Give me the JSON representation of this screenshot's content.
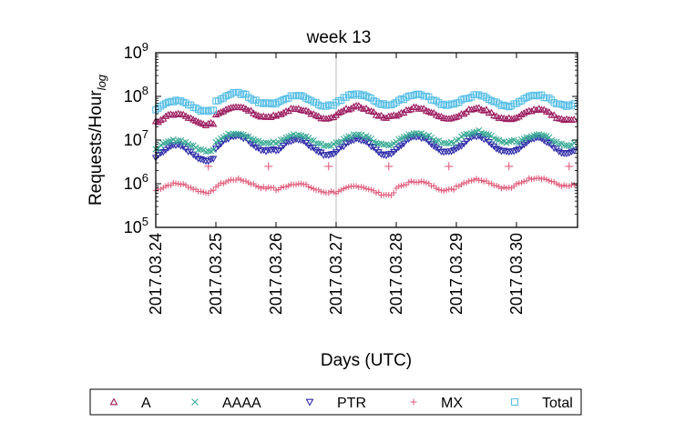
{
  "chart_data": {
    "type": "scatter",
    "title": "week 13",
    "xlabel": "Days (UTC)",
    "ylabel": "Requests/Hour",
    "ylabel_subscript": "log",
    "yscale": "log",
    "ylim": [
      100000,
      1000000000
    ],
    "yticks": [
      {
        "exp": "5",
        "value": 100000
      },
      {
        "exp": "6",
        "value": 1000000
      },
      {
        "exp": "7",
        "value": 10000000
      },
      {
        "exp": "8",
        "value": 100000000
      },
      {
        "exp": "9",
        "value": 1000000000
      }
    ],
    "ytick_base": "10",
    "xlim": [
      "2017-03-24",
      "2017-03-31"
    ],
    "xticks": [
      "2017.03.24",
      "2017.03.25",
      "2017.03.26",
      "2017.03.27",
      "2017.03.28",
      "2017.03.29",
      "2017.03.30"
    ],
    "vline": "2017.03.27",
    "grid": false,
    "legend_position": "bottom",
    "series": [
      {
        "name": "A",
        "marker": "triangle-up",
        "color": "#9b1b5e",
        "median": 40000000,
        "amplitude_log10": 0.12,
        "daily_hourly_approx": [
          30000000,
          45000000,
          40000000,
          44000000,
          42000000,
          40000000,
          38000000
        ]
      },
      {
        "name": "AAAA",
        "marker": "x",
        "color": "#3aab96",
        "median": 10000000,
        "amplitude_log10": 0.12,
        "daily_hourly_approx": [
          7500000,
          11000000,
          10000000,
          10000000,
          11000000,
          12000000,
          10000000
        ]
      },
      {
        "name": "PTR",
        "marker": "triangle-down",
        "color": "#2d2aa8",
        "median": 7000000,
        "amplitude_log10": 0.18,
        "daily_hourly_approx": [
          5000000,
          8500000,
          7000000,
          7000000,
          8000000,
          8000000,
          7500000
        ]
      },
      {
        "name": "MX",
        "marker": "plus",
        "color": "#e0607e",
        "median": 900000,
        "amplitude_log10": 0.1,
        "daily_hourly_approx": [
          800000,
          1000000,
          800000,
          700000,
          900000,
          1000000,
          1100000
        ],
        "outliers": [
          {
            "x": "2017-03-24 21:00",
            "y": 2500000
          },
          {
            "x": "2017-03-25 21:00",
            "y": 2500000
          },
          {
            "x": "2017-03-26 21:00",
            "y": 2500000
          },
          {
            "x": "2017-03-27 21:00",
            "y": 2500000
          },
          {
            "x": "2017-03-28 21:00",
            "y": 2500000
          },
          {
            "x": "2017-03-29 21:00",
            "y": 2500000
          },
          {
            "x": "2017-03-30 21:00",
            "y": 2500000
          }
        ]
      },
      {
        "name": "Total",
        "marker": "square",
        "color": "#5bc0e6",
        "median": 80000000,
        "amplitude_log10": 0.12,
        "daily_hourly_approx": [
          60000000,
          90000000,
          80000000,
          85000000,
          85000000,
          80000000,
          80000000
        ]
      }
    ]
  }
}
